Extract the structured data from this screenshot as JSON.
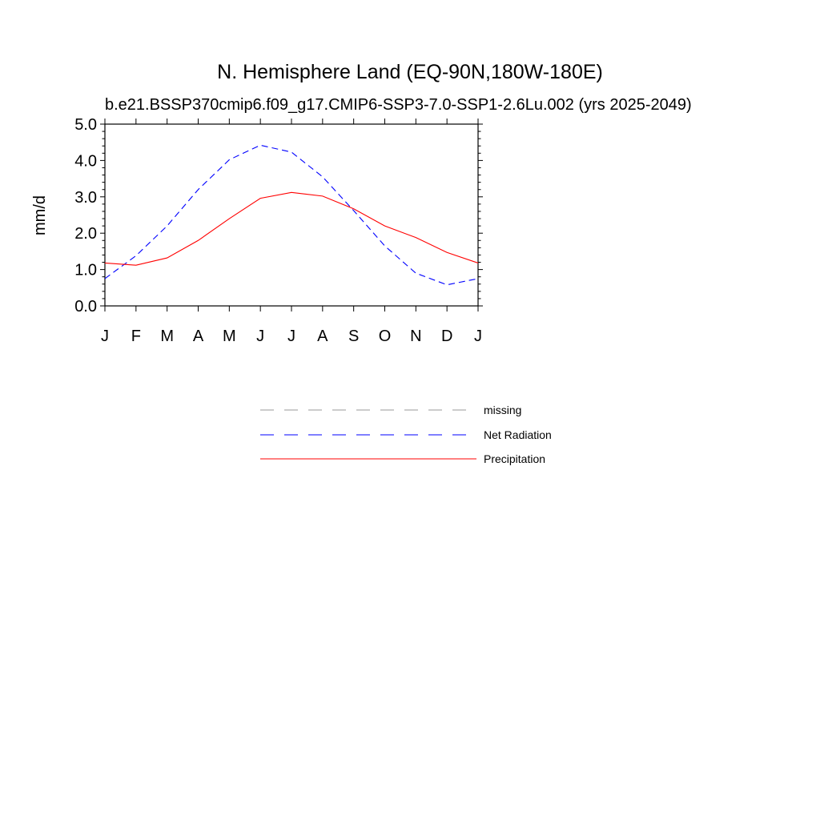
{
  "chart_data": {
    "type": "line",
    "title": "N. Hemisphere Land (EQ-90N,180W-180E)",
    "subtitle": "b.e21.BSSP370cmip6.f09_g17.CMIP6-SSP3-7.0-SSP1-2.6Lu.002 (yrs 2025-2049)",
    "xlabel": "",
    "ylabel": "mm/d",
    "x_tick_labels": [
      "J",
      "F",
      "M",
      "A",
      "M",
      "J",
      "J",
      "A",
      "S",
      "O",
      "N",
      "D",
      "J"
    ],
    "y_tick_labels": [
      "0.0",
      "1.0",
      "2.0",
      "3.0",
      "4.0",
      "5.0"
    ],
    "ylim": [
      0,
      5
    ],
    "xlim": [
      0,
      12
    ],
    "grid": false,
    "legend_position": "below",
    "series": [
      {
        "name": "missing",
        "color": "#999999",
        "dash": "dashed",
        "values": []
      },
      {
        "name": "Net Radiation",
        "color": "#0000ff",
        "dash": "dashed",
        "values": [
          0.75,
          1.38,
          2.2,
          3.2,
          4.02,
          4.42,
          4.23,
          3.55,
          2.62,
          1.65,
          0.9,
          0.58,
          0.75
        ]
      },
      {
        "name": "Precipitation",
        "color": "#ff0000",
        "dash": "solid",
        "values": [
          1.18,
          1.12,
          1.32,
          1.8,
          2.4,
          2.96,
          3.12,
          3.02,
          2.67,
          2.2,
          1.88,
          1.47,
          1.18
        ]
      }
    ]
  }
}
